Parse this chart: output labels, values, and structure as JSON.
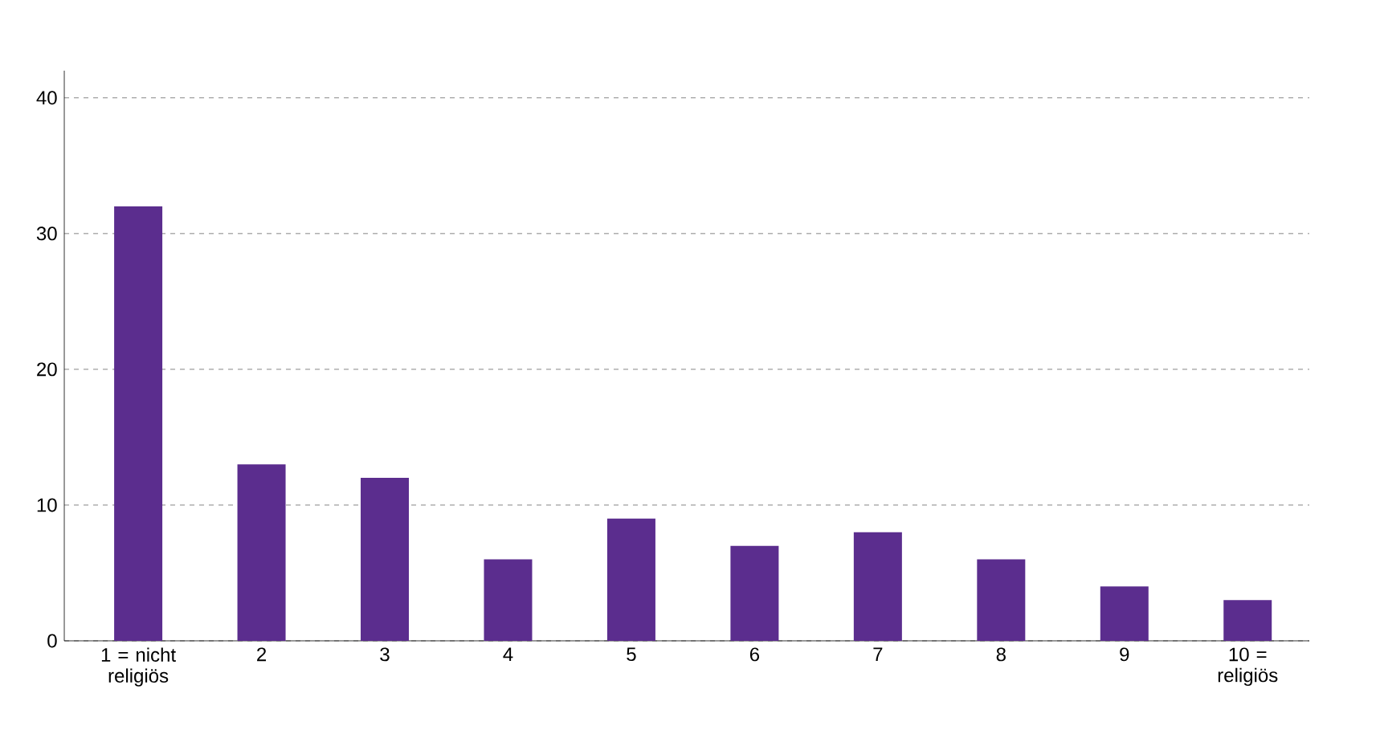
{
  "chart_data": {
    "type": "bar",
    "categories": [
      "1 = nicht religiös",
      "2",
      "3",
      "4",
      "5",
      "6",
      "7",
      "8",
      "9",
      "10 = religiös"
    ],
    "values": [
      32,
      13,
      12,
      6,
      9,
      7,
      8,
      6,
      4,
      3
    ],
    "color": "#5b2d8e",
    "ylim": [
      0,
      42
    ],
    "yticks": [
      0,
      10,
      20,
      30,
      40
    ],
    "grid": "y"
  }
}
